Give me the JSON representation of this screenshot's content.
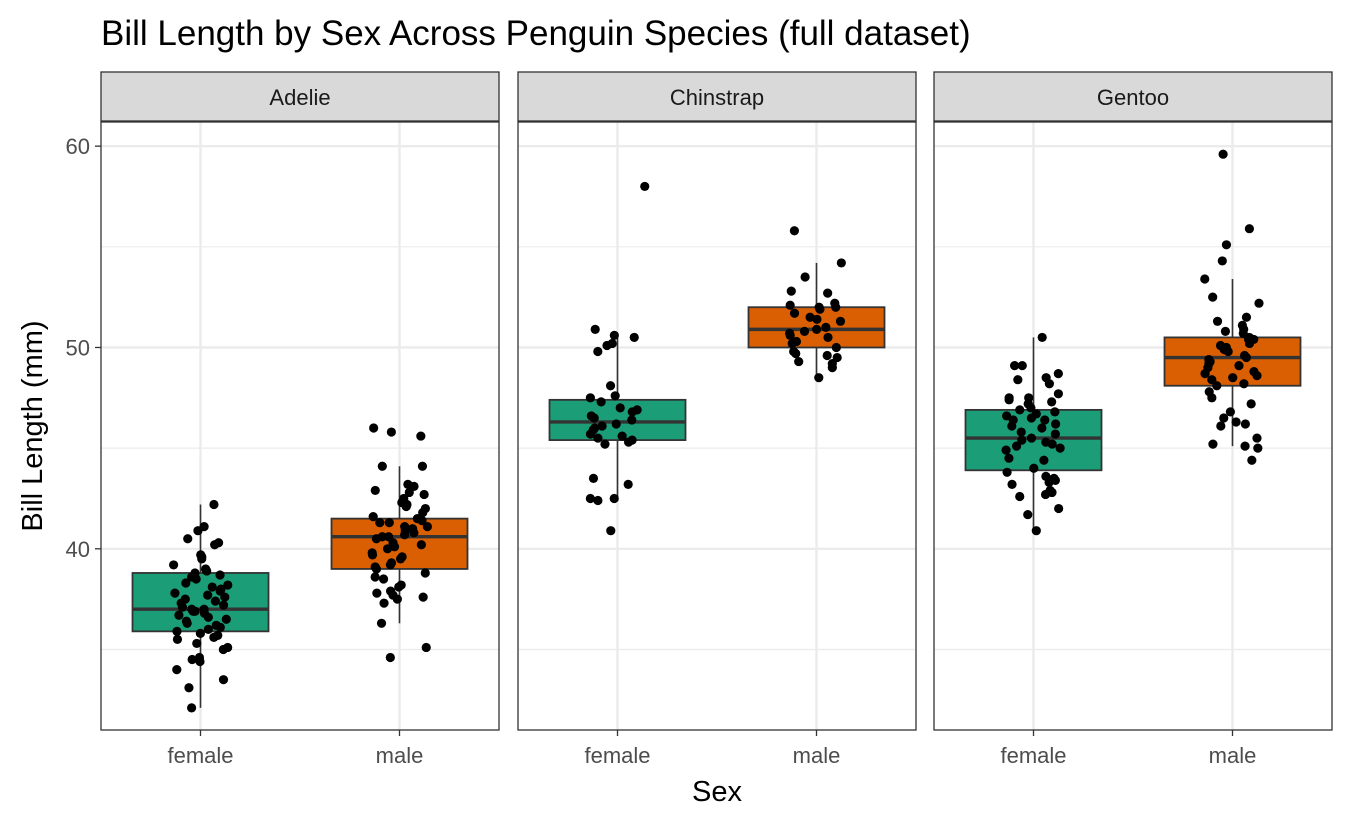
{
  "chart_data": {
    "type": "boxplot",
    "title": "Bill Length by Sex Across Penguin Species (full dataset)",
    "xlabel": "Sex",
    "ylabel": "Bill Length (mm)",
    "ylim": [
      31,
      61.2
    ],
    "y_ticks": [
      "40",
      "50",
      "60"
    ],
    "y_tick_values": [
      40,
      50,
      60
    ],
    "y_minor_ticks": [
      35,
      45,
      55
    ],
    "categories": [
      "female",
      "male"
    ],
    "colors": {
      "female": "#1b9e77",
      "male": "#d95f02"
    },
    "facets": [
      {
        "name": "Adelie",
        "boxes": [
          {
            "category": "female",
            "q1": 35.9,
            "median": 37.0,
            "q3": 38.8,
            "whisker_low": 32.1,
            "whisker_high": 42.2,
            "points": [
              42.2,
              41.1,
              40.9,
              40.5,
              40.3,
              40.2,
              39.7,
              39.6,
              39.5,
              39.2,
              39.0,
              38.9,
              38.8,
              38.7,
              38.6,
              38.5,
              38.3,
              38.2,
              38.1,
              38.0,
              37.9,
              37.8,
              37.7,
              37.6,
              37.5,
              37.4,
              37.3,
              37.2,
              37.1,
              37.0,
              37.0,
              36.9,
              36.9,
              36.8,
              36.7,
              36.6,
              36.5,
              36.4,
              36.3,
              36.2,
              36.1,
              36.0,
              35.9,
              35.8,
              35.7,
              35.6,
              35.5,
              35.3,
              35.1,
              35.0,
              34.6,
              34.5,
              34.4,
              34.0,
              33.5,
              33.1,
              32.1
            ]
          },
          {
            "category": "male",
            "q1": 39.0,
            "median": 40.6,
            "q3": 41.5,
            "whisker_low": 36.3,
            "whisker_high": 44.1,
            "points": [
              46.0,
              45.8,
              45.6,
              44.1,
              44.1,
              43.2,
              43.1,
              42.9,
              42.8,
              42.7,
              42.5,
              42.3,
              42.2,
              42.1,
              42.0,
              41.8,
              41.6,
              41.5,
              41.4,
              41.3,
              41.3,
              41.1,
              41.1,
              41.0,
              40.9,
              40.8,
              40.7,
              40.6,
              40.6,
              40.5,
              40.3,
              40.2,
              40.1,
              40.0,
              39.8,
              39.7,
              39.6,
              39.5,
              39.3,
              39.2,
              39.1,
              39.0,
              38.8,
              38.6,
              38.5,
              38.2,
              38.1,
              37.9,
              37.8,
              37.7,
              37.6,
              37.5,
              37.3,
              36.3,
              35.1,
              34.6
            ]
          }
        ]
      },
      {
        "name": "Chinstrap",
        "boxes": [
          {
            "category": "female",
            "q1": 45.4,
            "median": 46.3,
            "q3": 47.4,
            "whisker_low": 42.5,
            "whisker_high": 50.6,
            "points": [
              58.0,
              50.9,
              50.6,
              50.5,
              50.2,
              50.1,
              49.8,
              48.1,
              47.6,
              47.5,
              47.3,
              47.0,
              46.9,
              46.8,
              46.6,
              46.5,
              46.4,
              46.2,
              46.1,
              46.0,
              45.9,
              45.7,
              45.6,
              45.5,
              45.4,
              45.3,
              45.2,
              43.5,
              43.2,
              42.5,
              42.5,
              42.4,
              40.9
            ]
          },
          {
            "category": "male",
            "q1": 50.0,
            "median": 50.9,
            "q3": 52.0,
            "whisker_low": 48.5,
            "whisker_high": 54.2,
            "points": [
              55.8,
              54.2,
              53.5,
              52.8,
              52.7,
              52.2,
              52.1,
              52.0,
              52.0,
              51.9,
              51.7,
              51.5,
              51.4,
              51.3,
              51.0,
              50.9,
              50.8,
              50.7,
              50.6,
              50.5,
              50.3,
              50.2,
              50.0,
              49.8,
              49.7,
              49.6,
              49.5,
              49.3,
              49.2,
              49.0,
              48.5
            ]
          }
        ]
      },
      {
        "name": "Gentoo",
        "boxes": [
          {
            "category": "female",
            "q1": 43.9,
            "median": 45.5,
            "q3": 46.9,
            "whisker_low": 40.9,
            "whisker_high": 50.5,
            "points": [
              50.5,
              49.1,
              49.1,
              48.7,
              48.5,
              48.4,
              48.2,
              47.7,
              47.5,
              47.5,
              47.4,
              47.3,
              47.2,
              47.0,
              46.9,
              46.8,
              46.7,
              46.6,
              46.5,
              46.4,
              46.4,
              46.2,
              46.1,
              46.0,
              45.8,
              45.7,
              45.5,
              45.4,
              45.3,
              45.2,
              45.1,
              45.0,
              44.9,
              44.5,
              44.4,
              44.0,
              43.8,
              43.6,
              43.5,
              43.4,
              43.3,
              43.2,
              42.9,
              42.8,
              42.7,
              42.6,
              42.0,
              41.7,
              40.9
            ]
          },
          {
            "category": "male",
            "q1": 48.1,
            "median": 49.5,
            "q3": 50.5,
            "whisker_low": 45.1,
            "whisker_high": 53.4,
            "points": [
              59.6,
              55.9,
              55.1,
              54.3,
              53.4,
              52.5,
              52.2,
              51.5,
              51.3,
              51.1,
              50.9,
              50.8,
              50.7,
              50.5,
              50.4,
              50.4,
              50.2,
              50.1,
              50.0,
              49.9,
              49.8,
              49.6,
              49.5,
              49.4,
              49.3,
              49.2,
              49.1,
              49.0,
              48.8,
              48.7,
              48.6,
              48.5,
              48.4,
              48.2,
              48.1,
              47.8,
              47.5,
              47.2,
              46.8,
              46.5,
              46.3,
              46.2,
              46.1,
              45.5,
              45.2,
              45.1,
              45.0,
              44.4
            ]
          }
        ]
      }
    ]
  }
}
